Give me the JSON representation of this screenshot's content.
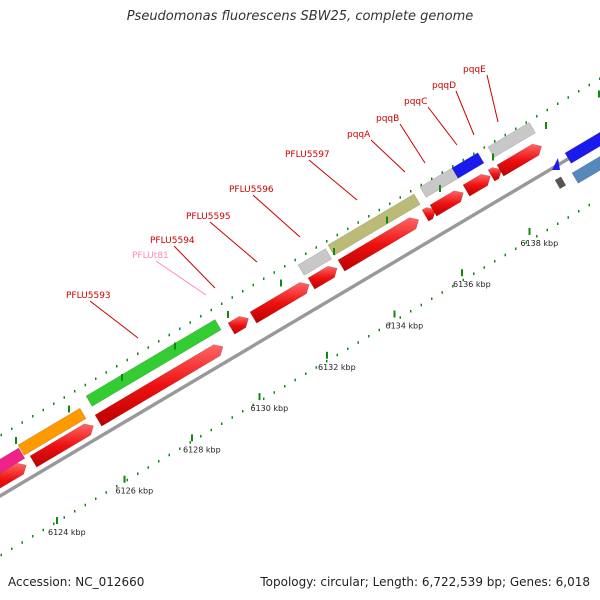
{
  "title": "Pseudomonas fluorescens SBW25, complete genome",
  "footer": {
    "accession": "Accession: NC_012660",
    "summary": "Topology: circular; Length: 6,722,539 bp; Genes: 6,018"
  },
  "ticks": [
    {
      "label": "6124 kbp",
      "kbp": 6124
    },
    {
      "label": "6126 kbp",
      "kbp": 6126
    },
    {
      "label": "6128 kbp",
      "kbp": 6128
    },
    {
      "label": "6130 kbp",
      "kbp": 6130
    },
    {
      "label": "6132 kbp",
      "kbp": 6132
    },
    {
      "label": "6134 kbp",
      "kbp": 6134
    },
    {
      "label": "6136 kbp",
      "kbp": 6136
    },
    {
      "label": "6138 kbp",
      "kbp": 6138
    }
  ],
  "labels": [
    {
      "text": "PFLU5593",
      "color": "#cc0000"
    },
    {
      "text": "PFLUt81",
      "color": "#ff88bb"
    },
    {
      "text": "PFLU5594",
      "color": "#cc0000"
    },
    {
      "text": "PFLU5595",
      "color": "#cc0000"
    },
    {
      "text": "PFLU5596",
      "color": "#cc0000"
    },
    {
      "text": "PFLU5597",
      "color": "#cc0000"
    },
    {
      "text": "pqqA",
      "color": "#cc0000"
    },
    {
      "text": "pqqB",
      "color": "#cc0000"
    },
    {
      "text": "pqqC",
      "color": "#cc0000"
    },
    {
      "text": "pqqD",
      "color": "#cc0000"
    },
    {
      "text": "pqqE",
      "color": "#cc0000"
    }
  ],
  "colors": {
    "cds": "#ee1111",
    "backbone": "#999999",
    "tick": "#118811",
    "gray_feature": "#c8c8c8",
    "green_feature": "#33cc33",
    "orange_feature": "#ff9900",
    "olive_feature": "#bbbb77",
    "blue_feature": "#1a1aee",
    "magenta_feature": "#ee2288",
    "steel_feature": "#5588bb"
  }
}
